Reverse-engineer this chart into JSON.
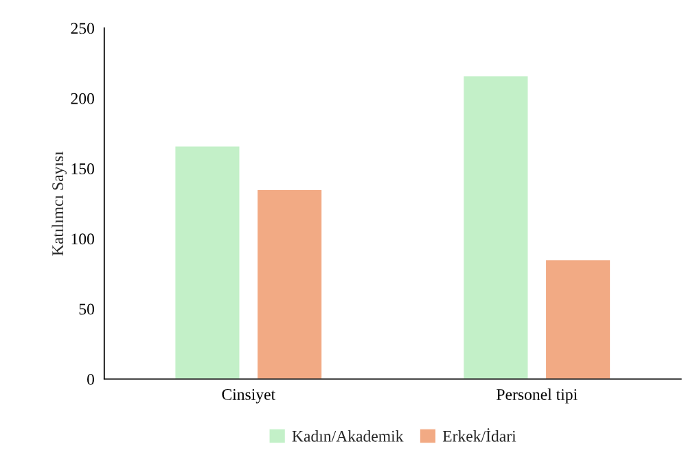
{
  "chart_data": {
    "type": "bar",
    "ylabel": "Katılımcı Sayısı",
    "categories": [
      "Cinsiyet",
      "Personel tipi"
    ],
    "series": [
      {
        "name": "Kadın/Akademik",
        "color": "#c3f0c8",
        "values": [
          166,
          216
        ]
      },
      {
        "name": "Erkek/İdari",
        "color": "#f2aa84",
        "values": [
          135,
          85
        ]
      }
    ],
    "ylim": [
      0,
      250
    ],
    "yticks": [
      0,
      50,
      100,
      150,
      200,
      250
    ],
    "grid": false,
    "legend": "bottom"
  }
}
